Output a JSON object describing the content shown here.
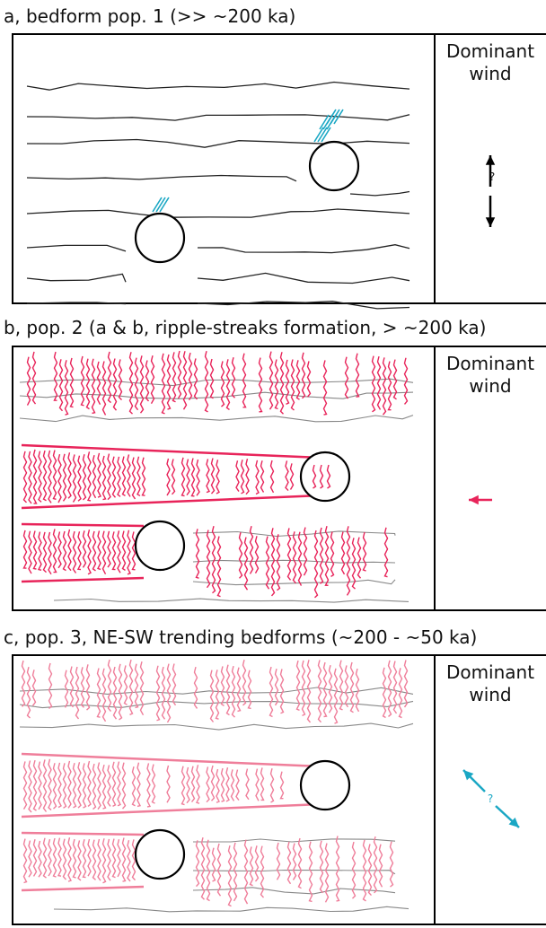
{
  "panels": [
    {
      "title": "a, bedform pop. 1 (>> ~200 ka)",
      "wind_label": [
        "Dominant",
        "wind"
      ],
      "wind_note": "?"
    },
    {
      "title": "b, pop. 2 (a & b, ripple-streaks formation, > ~200 ka)",
      "wind_label": [
        "Dominant",
        "wind"
      ]
    },
    {
      "title": "c, pop. 3, NE-SW trending bedforms (~200 - ~50 ka)",
      "wind_label": [
        "Dominant",
        "wind"
      ],
      "wind_note": "?"
    }
  ]
}
